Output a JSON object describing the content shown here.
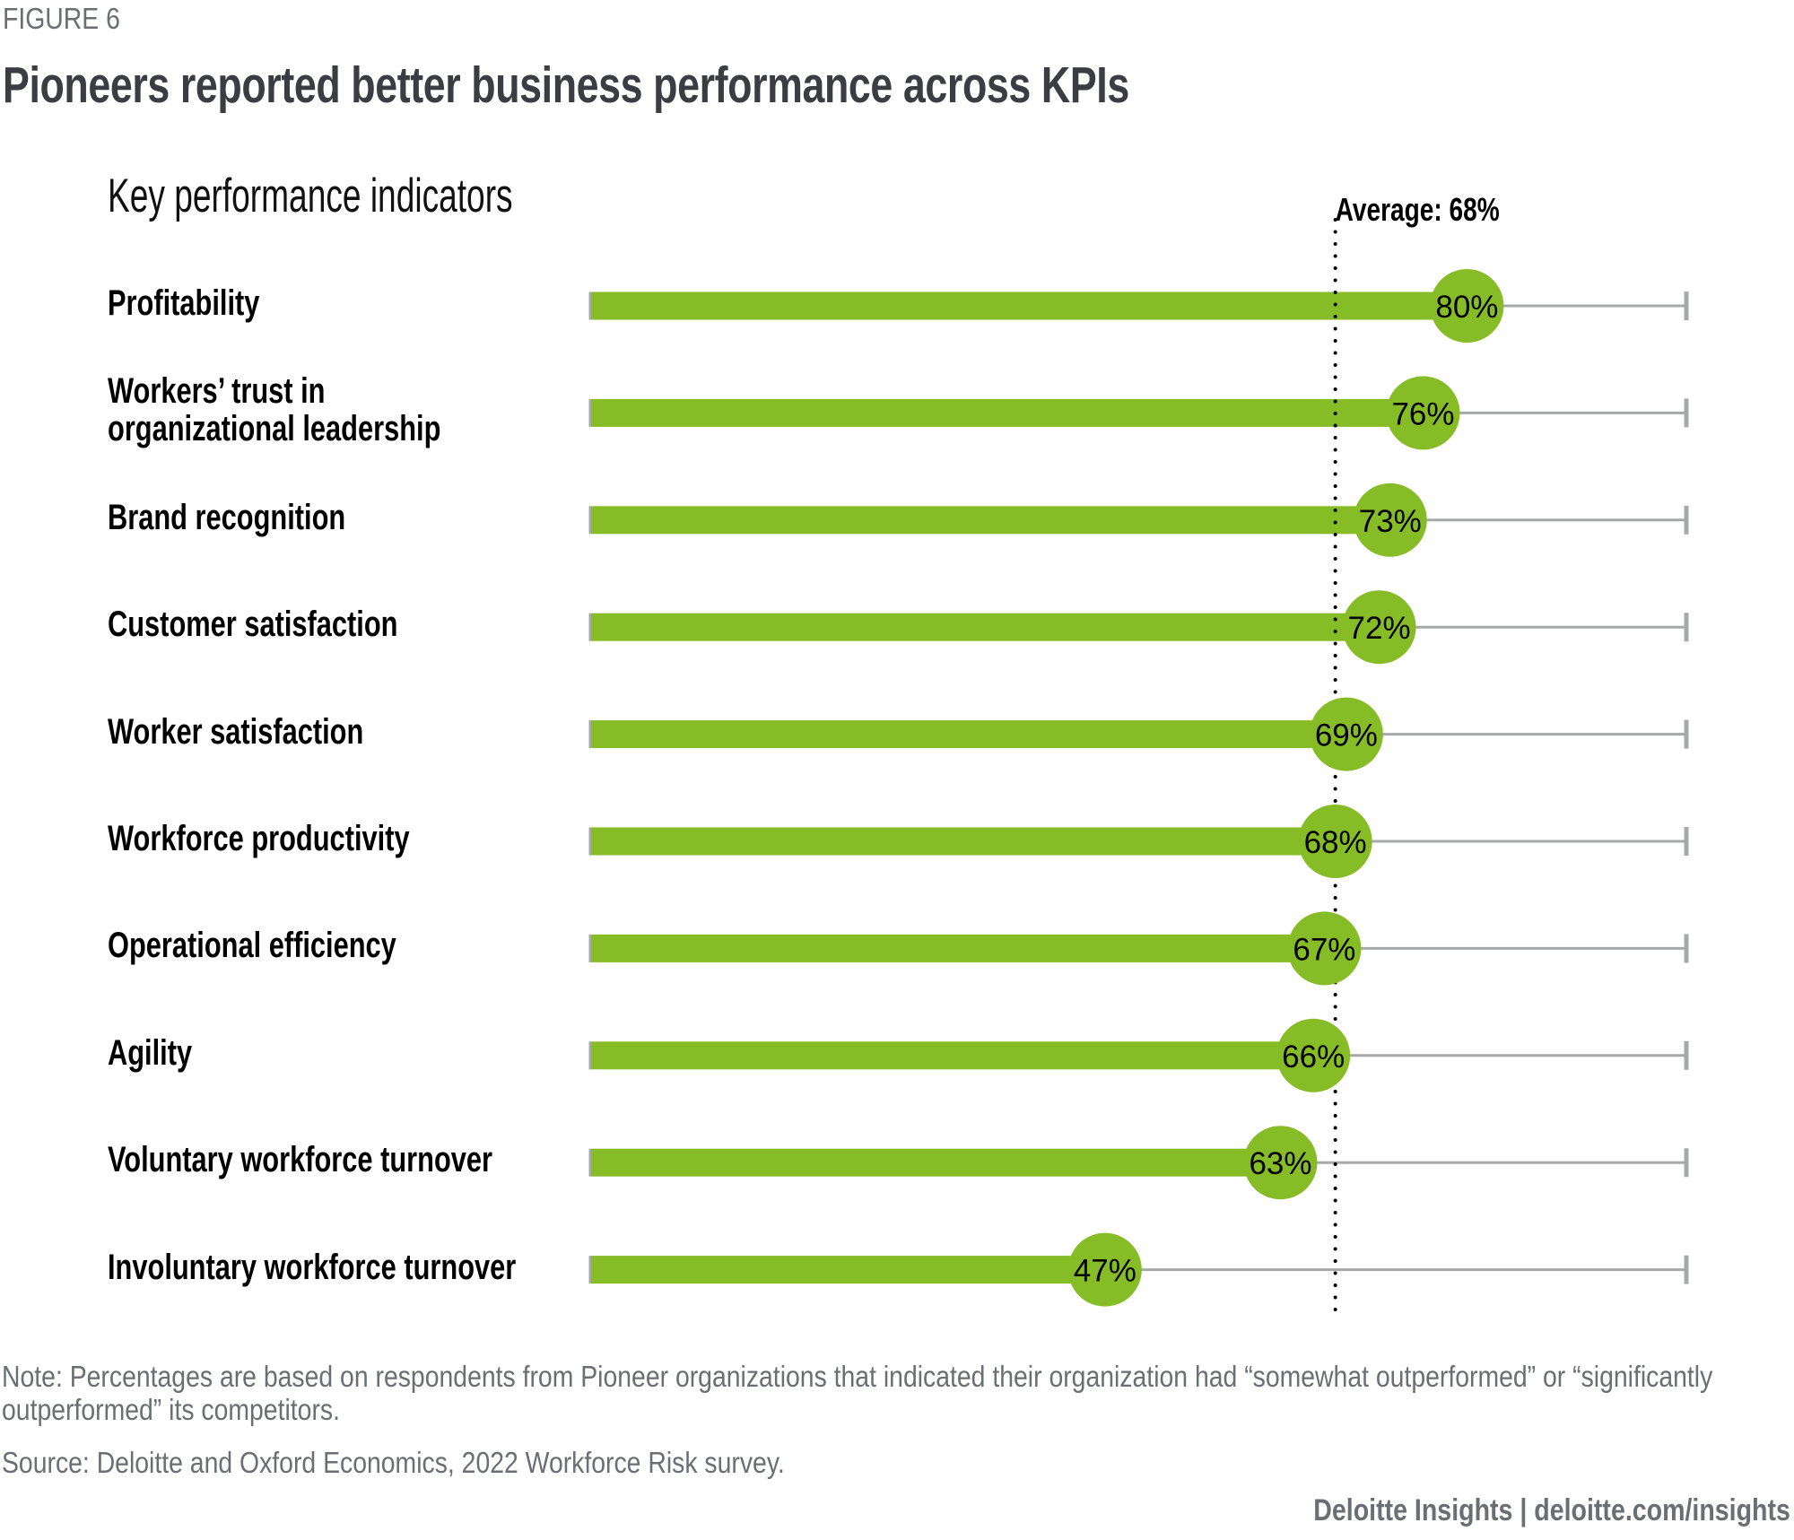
{
  "figure_label": "FIGURE 6",
  "title": "Pioneers reported better business performance across KPIs",
  "subtitle": "Key performance indicators",
  "note": "Note: Percentages are based on respondents from Pioneer organizations that indicated their organization had “somewhat outperformed” or “significantly outperformed” its competitors.",
  "source": "Source: Deloitte and Oxford Economics, 2022 Workforce Risk survey.",
  "credit": "Deloitte Insights | deloitte.com/insights",
  "colors": {
    "bar": "#86bc25",
    "track": "#a7a8aa",
    "average_line": "#000000",
    "title": "#3c3d42",
    "footer": "#6b6e73"
  },
  "chart_data": {
    "type": "bar",
    "orientation": "horizontal",
    "title": "Pioneers reported better business performance across KPIs",
    "subtitle": "Key performance indicators",
    "xlabel": "",
    "ylabel": "Key performance indicators",
    "xlim": [
      0,
      100
    ],
    "unit": "%",
    "grid": false,
    "legend": "none",
    "categories": [
      "Profitability",
      "Workers’ trust in organizational leadership",
      "Brand recognition",
      "Customer satisfaction",
      "Worker satisfaction",
      "Workforce productivity",
      "Operational efficiency",
      "Agility",
      "Voluntary workforce turnover",
      "Involuntary workforce turnover"
    ],
    "category_lines": [
      [
        "Profitability"
      ],
      [
        "Workers’ trust in",
        "organizational leadership"
      ],
      [
        "Brand recognition"
      ],
      [
        "Customer satisfaction"
      ],
      [
        "Worker satisfaction"
      ],
      [
        "Workforce productivity"
      ],
      [
        "Operational efficiency"
      ],
      [
        "Agility"
      ],
      [
        "Voluntary workforce turnover"
      ],
      [
        "Involuntary workforce turnover"
      ]
    ],
    "values": [
      80,
      76,
      73,
      72,
      69,
      68,
      67,
      66,
      63,
      47
    ],
    "data_labels": [
      "80%",
      "76%",
      "73%",
      "72%",
      "69%",
      "68%",
      "67%",
      "66%",
      "63%",
      "47%"
    ],
    "reference_line": {
      "label": "Average: 68%",
      "value": 68,
      "style": "dotted"
    }
  }
}
